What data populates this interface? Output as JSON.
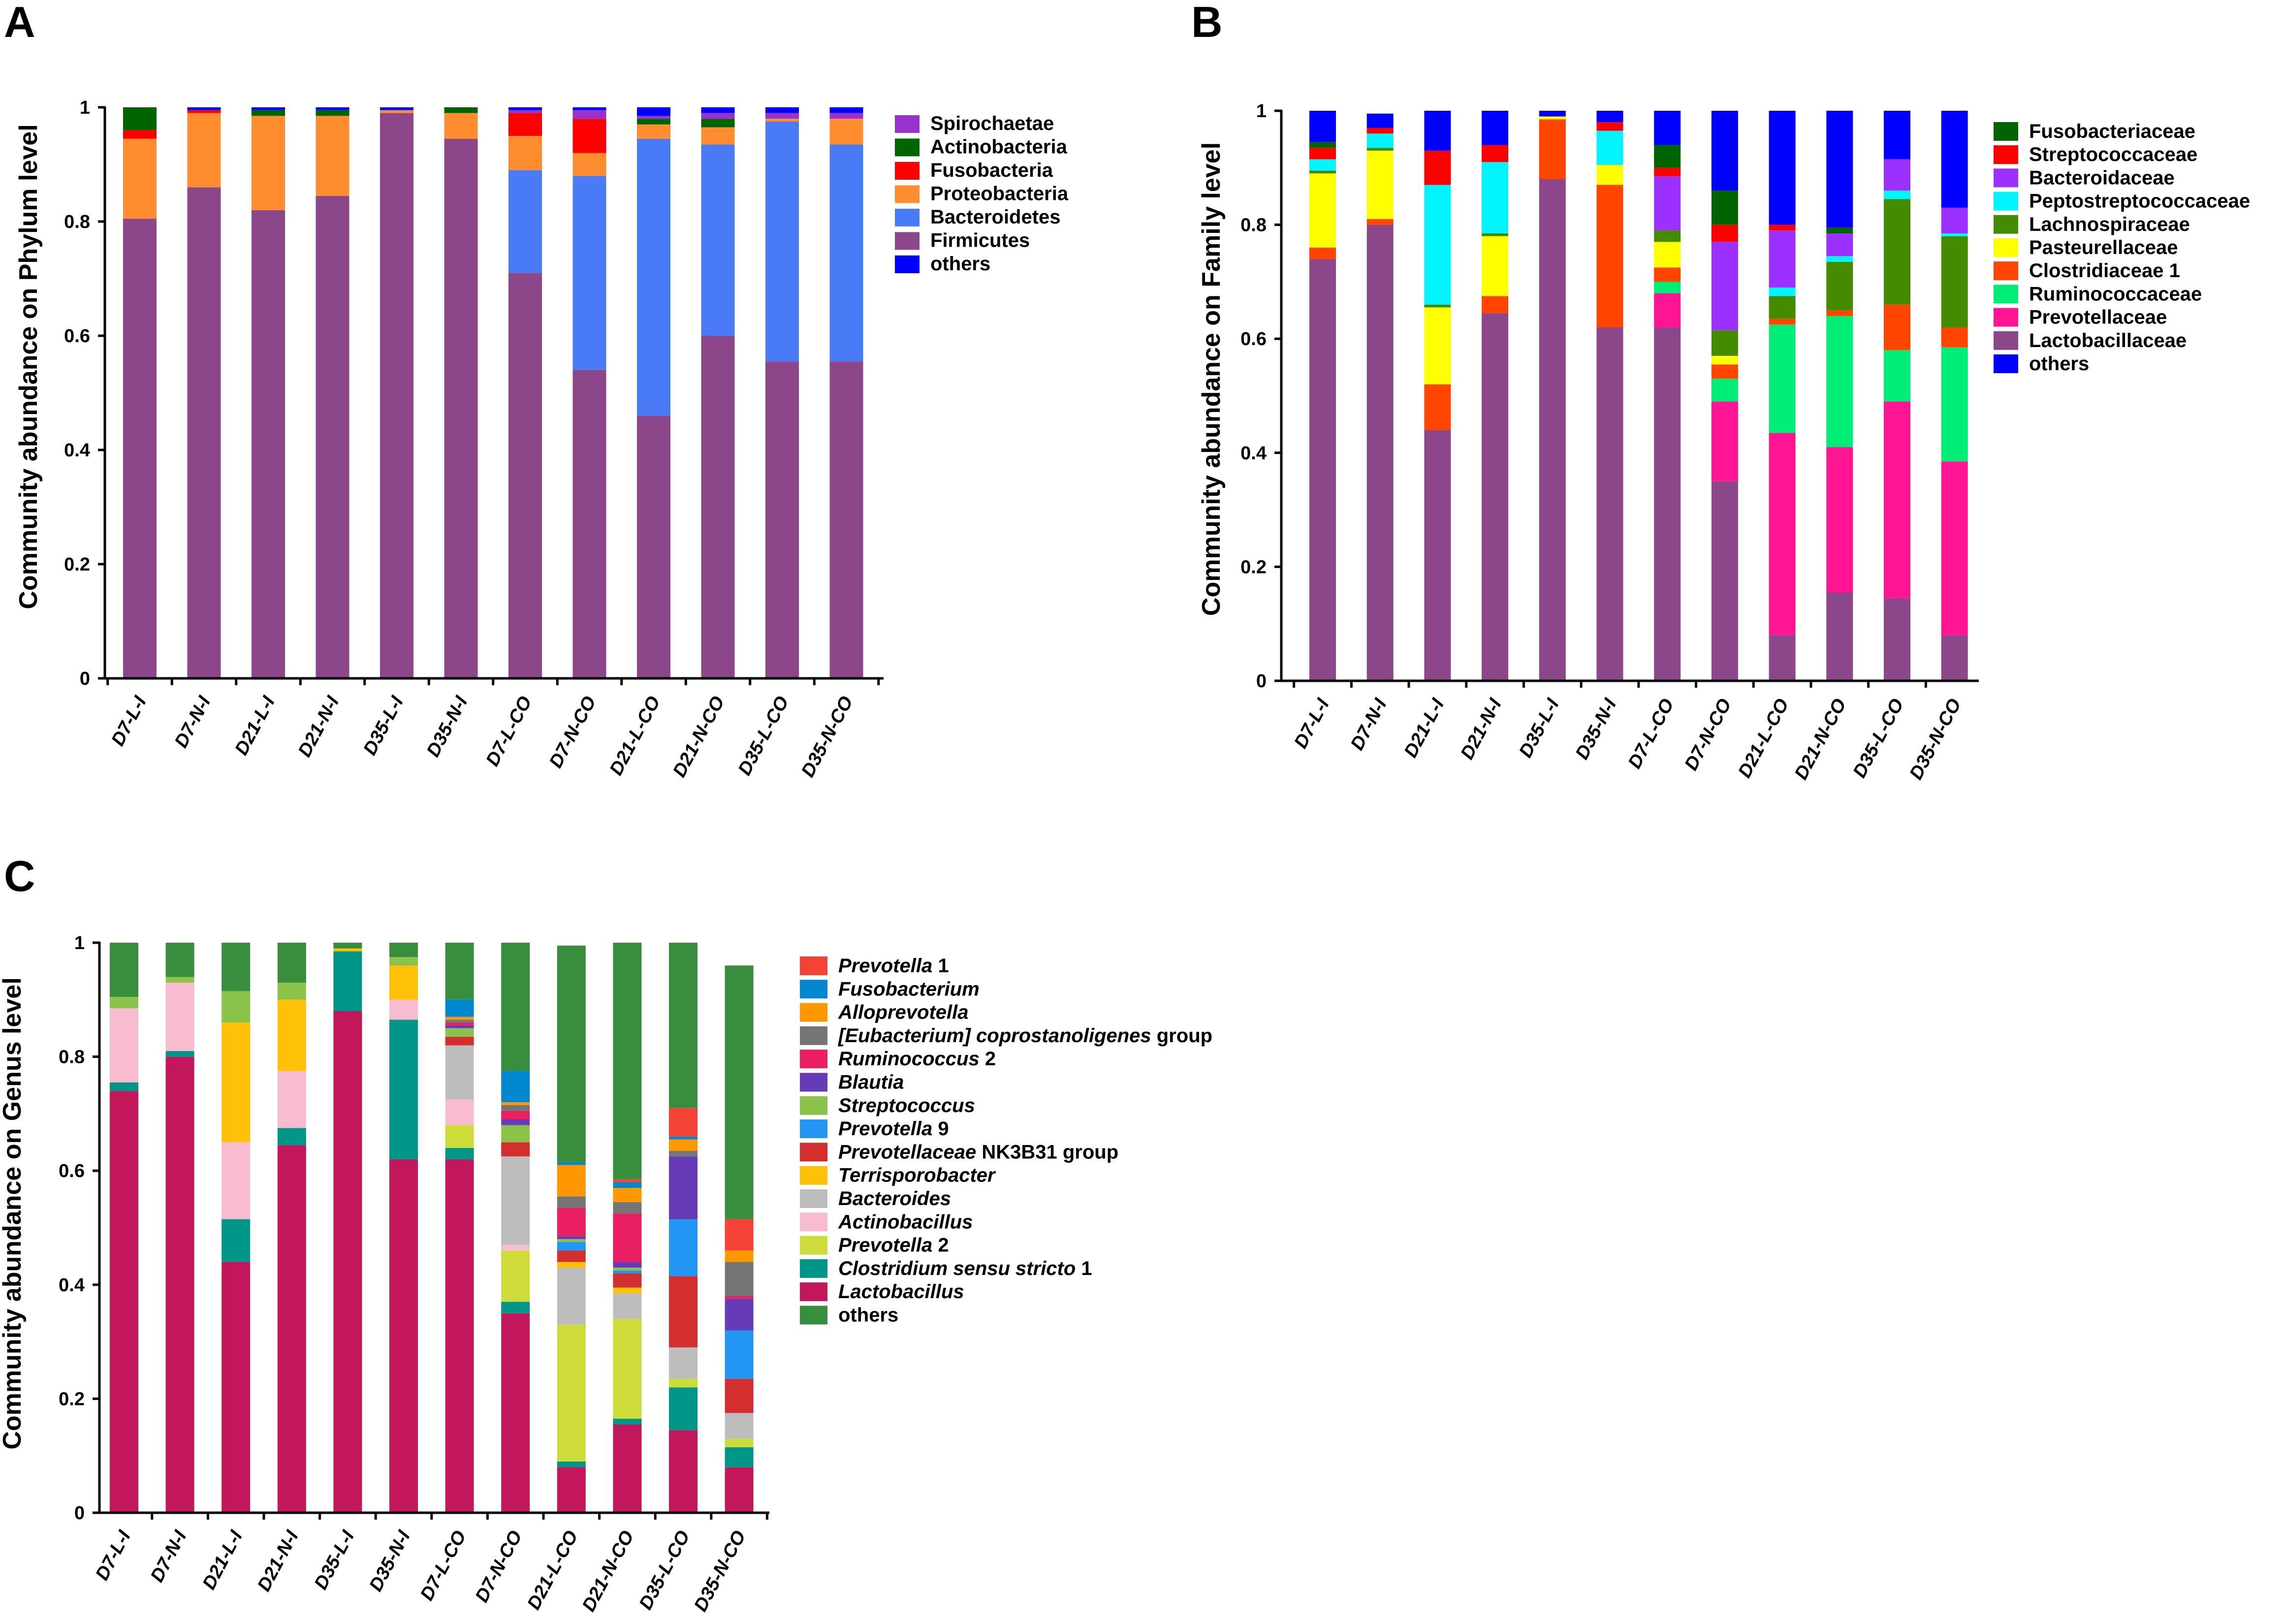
{
  "chart_data": [
    {
      "panel": "A",
      "type": "bar",
      "stacked": true,
      "ylabel": "Community abundance on Phylum level",
      "ylim": [
        0,
        1
      ],
      "yticks": [
        0,
        0.2,
        0.4,
        0.6,
        0.8,
        1
      ],
      "categories": [
        "D7-L-I",
        "D7-N-I",
        "D21-L-I",
        "D21-N-I",
        "D35-L-I",
        "D35-N-I",
        "D7-L-CO",
        "D7-N-CO",
        "D21-L-CO",
        "D21-N-CO",
        "D35-L-CO",
        "D35-N-CO"
      ],
      "legend_position": "right",
      "series": [
        {
          "name": "Firmicutes",
          "color": "#8B4789",
          "values": [
            0.805,
            0.86,
            0.82,
            0.845,
            0.99,
            0.945,
            0.71,
            0.54,
            0.46,
            0.6,
            0.555,
            0.555
          ]
        },
        {
          "name": "Bacteroidetes",
          "color": "#4A7BF7",
          "values": [
            0.0,
            0.0,
            0.0,
            0.0,
            0.0,
            0.0,
            0.18,
            0.34,
            0.485,
            0.335,
            0.42,
            0.38
          ]
        },
        {
          "name": "Proteobacteria",
          "color": "#FF8C2E",
          "values": [
            0.14,
            0.13,
            0.165,
            0.14,
            0.005,
            0.045,
            0.06,
            0.04,
            0.025,
            0.03,
            0.005,
            0.045
          ]
        },
        {
          "name": "Fusobacteria",
          "color": "#FF0000",
          "values": [
            0.015,
            0.005,
            0.0,
            0.0,
            0.0,
            0.0,
            0.04,
            0.06,
            0.0,
            0.0,
            0.0,
            0.0
          ]
        },
        {
          "name": "Actinobacteria",
          "color": "#006400",
          "values": [
            0.04,
            0.0,
            0.01,
            0.01,
            0.0,
            0.01,
            0.0,
            0.0,
            0.01,
            0.015,
            0.0,
            0.0
          ]
        },
        {
          "name": "Spirochaetae",
          "color": "#9932CC",
          "values": [
            0.0,
            0.0,
            0.0,
            0.0,
            0.0,
            0.0,
            0.005,
            0.015,
            0.005,
            0.01,
            0.01,
            0.01
          ]
        },
        {
          "name": "others",
          "color": "#0000FF",
          "values": [
            0.0,
            0.005,
            0.005,
            0.005,
            0.005,
            0.0,
            0.005,
            0.005,
            0.015,
            0.01,
            0.01,
            0.01
          ]
        }
      ],
      "legend_order": [
        "Spirochaetae",
        "Actinobacteria",
        "Fusobacteria",
        "Proteobacteria",
        "Bacteroidetes",
        "Firmicutes",
        "others"
      ]
    },
    {
      "panel": "B",
      "type": "bar",
      "stacked": true,
      "ylabel": "Community abundance on Family level",
      "ylim": [
        0,
        1
      ],
      "yticks": [
        0,
        0.2,
        0.4,
        0.6,
        0.8,
        1
      ],
      "categories": [
        "D7-L-I",
        "D7-N-I",
        "D21-L-I",
        "D21-N-I",
        "D35-L-I",
        "D35-N-I",
        "D7-L-CO",
        "D7-N-CO",
        "D21-L-CO",
        "D21-N-CO",
        "D35-L-CO",
        "D35-N-CO"
      ],
      "legend_position": "right",
      "series": [
        {
          "name": "Lactobacillaceae",
          "color": "#8B4789",
          "values": [
            0.74,
            0.8,
            0.44,
            0.645,
            0.88,
            0.62,
            0.62,
            0.35,
            0.08,
            0.155,
            0.145,
            0.08
          ]
        },
        {
          "name": "Prevotellaceae",
          "color": "#FF1493",
          "values": [
            0.0,
            0.0,
            0.0,
            0.0,
            0.0,
            0.0,
            0.06,
            0.14,
            0.355,
            0.255,
            0.345,
            0.305
          ]
        },
        {
          "name": "Ruminococcaceae",
          "color": "#00EE76",
          "values": [
            0.0,
            0.0,
            0.0,
            0.0,
            0.0,
            0.0,
            0.02,
            0.04,
            0.19,
            0.23,
            0.09,
            0.2
          ]
        },
        {
          "name": "Clostridiaceae 1",
          "color": "#FF4500",
          "values": [
            0.02,
            0.01,
            0.08,
            0.03,
            0.105,
            0.25,
            0.025,
            0.025,
            0.01,
            0.01,
            0.08,
            0.035
          ]
        },
        {
          "name": "Pasteurellaceae",
          "color": "#FFFF00",
          "values": [
            0.13,
            0.12,
            0.135,
            0.105,
            0.005,
            0.035,
            0.045,
            0.015,
            0.0,
            0.0,
            0.0,
            0.0
          ]
        },
        {
          "name": "Lachnospiraceae",
          "color": "#458B00",
          "values": [
            0.005,
            0.005,
            0.005,
            0.005,
            0.0,
            0.0,
            0.02,
            0.045,
            0.04,
            0.085,
            0.185,
            0.16
          ]
        },
        {
          "name": "Peptostreptococcaceae",
          "color": "#00F5FF",
          "values": [
            0.02,
            0.025,
            0.21,
            0.125,
            0.0,
            0.06,
            0.0,
            0.0,
            0.015,
            0.01,
            0.015,
            0.005
          ]
        },
        {
          "name": "Bacteroidaceae",
          "color": "#9B30FF",
          "values": [
            0.0,
            0.0,
            0.0,
            0.0,
            0.0,
            0.0,
            0.095,
            0.155,
            0.1,
            0.04,
            0.055,
            0.045
          ]
        },
        {
          "name": "Streptococcaceae",
          "color": "#FF0000",
          "values": [
            0.02,
            0.01,
            0.06,
            0.03,
            0.0,
            0.015,
            0.015,
            0.03,
            0.01,
            0.0,
            0.0,
            0.0
          ]
        },
        {
          "name": "Fusobacteriaceae",
          "color": "#006400",
          "values": [
            0.01,
            0.0,
            0.0,
            0.0,
            0.0,
            0.0,
            0.04,
            0.06,
            0.0,
            0.01,
            0.0,
            0.0
          ]
        },
        {
          "name": "others",
          "color": "#0000FF",
          "values": [
            0.055,
            0.025,
            0.07,
            0.06,
            0.01,
            0.02,
            0.06,
            0.14,
            0.2,
            0.205,
            0.085,
            0.17
          ]
        }
      ],
      "legend_order": [
        "Fusobacteriaceae",
        "Streptococcaceae",
        "Bacteroidaceae",
        "Peptostreptococcaceae",
        "Lachnospiraceae",
        "Pasteurellaceae",
        "Clostridiaceae 1",
        "Ruminococcaceae",
        "Prevotellaceae",
        "Lactobacillaceae",
        "others"
      ]
    },
    {
      "panel": "C",
      "type": "bar",
      "stacked": true,
      "ylabel": "Community abundance on Genus level",
      "ylim": [
        0,
        1
      ],
      "yticks": [
        0,
        0.2,
        0.4,
        0.6,
        0.8,
        1
      ],
      "categories": [
        "D7-L-I",
        "D7-N-I",
        "D21-L-I",
        "D21-N-I",
        "D35-L-I",
        "D35-N-I",
        "D7-L-CO",
        "D7-N-CO",
        "D21-L-CO",
        "D21-N-CO",
        "D35-L-CO",
        "D35-N-CO"
      ],
      "legend_position": "right",
      "series": [
        {
          "name": "Lactobacillus",
          "color": "#C2185B",
          "values": [
            0.74,
            0.8,
            0.44,
            0.645,
            0.88,
            0.62,
            0.62,
            0.35,
            0.08,
            0.155,
            0.145,
            0.08
          ]
        },
        {
          "name": "Clostridium sensu stricto 1",
          "color": "#009688",
          "values": [
            0.015,
            0.01,
            0.075,
            0.03,
            0.105,
            0.245,
            0.02,
            0.02,
            0.01,
            0.01,
            0.075,
            0.035
          ]
        },
        {
          "name": "Prevotella 2",
          "color": "#CDDC39",
          "values": [
            0.0,
            0.0,
            0.0,
            0.0,
            0.0,
            0.0,
            0.04,
            0.09,
            0.24,
            0.175,
            0.015,
            0.015
          ]
        },
        {
          "name": "Actinobacillus",
          "color": "#F8BBD0",
          "values": [
            0.13,
            0.12,
            0.135,
            0.1,
            0.0,
            0.035,
            0.045,
            0.01,
            0.0,
            0.0,
            0.0,
            0.0
          ]
        },
        {
          "name": "Bacteroides",
          "color": "#BDBDBD",
          "values": [
            0.0,
            0.0,
            0.0,
            0.0,
            0.0,
            0.0,
            0.095,
            0.155,
            0.1,
            0.045,
            0.055,
            0.045
          ]
        },
        {
          "name": "Terrisporobacter",
          "color": "#FFC107",
          "values": [
            0.0,
            0.0,
            0.21,
            0.125,
            0.005,
            0.06,
            0.0,
            0.0,
            0.01,
            0.01,
            0.0,
            0.0
          ]
        },
        {
          "name": "Prevotellaceae NK3B31 group",
          "color": "#D32F2F",
          "values": [
            0.0,
            0.0,
            0.0,
            0.0,
            0.0,
            0.0,
            0.015,
            0.025,
            0.02,
            0.025,
            0.125,
            0.06
          ]
        },
        {
          "name": "Prevotella 9",
          "color": "#2196F3",
          "values": [
            0.0,
            0.0,
            0.0,
            0.0,
            0.0,
            0.0,
            0.0,
            0.0,
            0.015,
            0.005,
            0.1,
            0.085
          ]
        },
        {
          "name": "Streptococcus",
          "color": "#8BC34A",
          "values": [
            0.02,
            0.01,
            0.055,
            0.03,
            0.0,
            0.015,
            0.015,
            0.03,
            0.005,
            0.005,
            0.0,
            0.0
          ]
        },
        {
          "name": "Blautia",
          "color": "#673AB7",
          "values": [
            0.0,
            0.0,
            0.0,
            0.0,
            0.0,
            0.0,
            0.005,
            0.01,
            0.005,
            0.01,
            0.11,
            0.055
          ]
        },
        {
          "name": "Ruminococcus 2",
          "color": "#E91E63",
          "values": [
            0.0,
            0.0,
            0.0,
            0.0,
            0.0,
            0.0,
            0.005,
            0.015,
            0.05,
            0.085,
            0.0,
            0.005
          ]
        },
        {
          "name": "[Eubacterium] coprostanoligenes group",
          "color": "#757575",
          "values": [
            0.0,
            0.0,
            0.0,
            0.0,
            0.0,
            0.0,
            0.005,
            0.01,
            0.02,
            0.02,
            0.01,
            0.06
          ]
        },
        {
          "name": "Alloprevotella",
          "color": "#FF9800",
          "values": [
            0.0,
            0.0,
            0.0,
            0.0,
            0.0,
            0.0,
            0.005,
            0.005,
            0.055,
            0.025,
            0.02,
            0.02
          ]
        },
        {
          "name": "Fusobacterium",
          "color": "#0288D1",
          "values": [
            0.0,
            0.0,
            0.0,
            0.0,
            0.0,
            0.0,
            0.03,
            0.055,
            0.005,
            0.01,
            0.005,
            0.0
          ]
        },
        {
          "name": "Prevotella 1",
          "color": "#F44336",
          "values": [
            0.0,
            0.0,
            0.0,
            0.0,
            0.0,
            0.0,
            0.0,
            0.0,
            0.0,
            0.005,
            0.05,
            0.055
          ]
        },
        {
          "name": "others",
          "color": "#388E3C",
          "values": [
            0.095,
            0.06,
            0.085,
            0.07,
            0.01,
            0.025,
            0.1,
            0.225,
            0.38,
            0.415,
            0.29,
            0.445
          ]
        }
      ],
      "legend_order": [
        "Prevotella 1",
        "Fusobacterium",
        "Alloprevotella",
        "[Eubacterium] coprostanoligenes group",
        "Ruminococcus 2",
        "Blautia",
        "Streptococcus",
        "Prevotella 9",
        "Prevotellaceae NK3B31 group",
        "Terrisporobacter",
        "Bacteroides",
        "Actinobacillus",
        "Prevotella 2",
        "Clostridium sensu stricto 1",
        "Lactobacillus",
        "others"
      ],
      "legend_labels": {
        "Prevotella 1": [
          {
            "t": "Prevotella",
            "i": true
          },
          {
            "t": " 1",
            "i": false
          }
        ],
        "Fusobacterium": [
          {
            "t": "Fusobacterium",
            "i": true
          }
        ],
        "Alloprevotella": [
          {
            "t": "Alloprevotella",
            "i": true
          }
        ],
        "[Eubacterium] coprostanoligenes group": [
          {
            "t": "[Eubacterium] coprostanoligenes",
            "i": true
          },
          {
            "t": " group",
            "i": false
          }
        ],
        "Ruminococcus 2": [
          {
            "t": "Ruminococcus",
            "i": true
          },
          {
            "t": " 2",
            "i": false
          }
        ],
        "Blautia": [
          {
            "t": "Blautia",
            "i": true
          }
        ],
        "Streptococcus": [
          {
            "t": "Streptococcus",
            "i": true
          }
        ],
        "Prevotella 9": [
          {
            "t": "Prevotella",
            "i": true
          },
          {
            "t": " 9",
            "i": false
          }
        ],
        "Prevotellaceae NK3B31 group": [
          {
            "t": "Prevotellaceae",
            "i": true
          },
          {
            "t": " NK3B31 group",
            "i": false
          }
        ],
        "Terrisporobacter": [
          {
            "t": "Terrisporobacter",
            "i": true
          }
        ],
        "Bacteroides": [
          {
            "t": "Bacteroides",
            "i": true
          }
        ],
        "Actinobacillus": [
          {
            "t": "Actinobacillus",
            "i": true
          }
        ],
        "Prevotella 2": [
          {
            "t": "Prevotella",
            "i": true
          },
          {
            "t": " 2",
            "i": false
          }
        ],
        "Clostridium sensu stricto 1": [
          {
            "t": "Clostridium sensu stricto",
            "i": true
          },
          {
            "t": " 1",
            "i": false
          }
        ],
        "Lactobacillus": [
          {
            "t": "Lactobacillus",
            "i": true
          }
        ],
        "others": [
          {
            "t": "others",
            "i": false
          }
        ]
      }
    }
  ]
}
